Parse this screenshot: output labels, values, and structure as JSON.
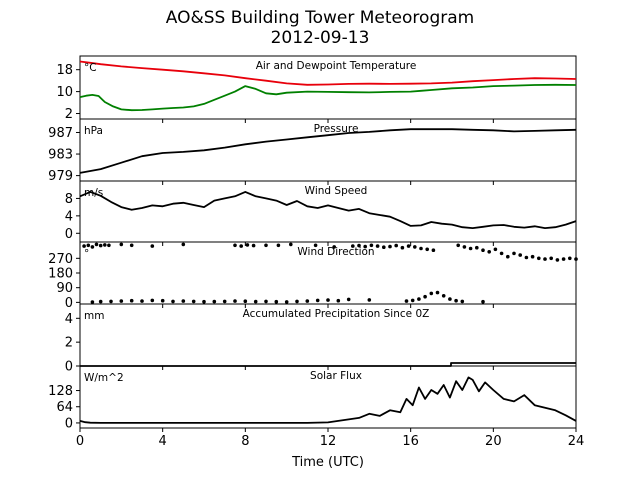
{
  "title_line1": "AO&SS Building Tower Meteorogram",
  "title_line2": "2012-09-13",
  "xlabel": "Time (UTC)",
  "x_ticks": [
    0,
    4,
    8,
    12,
    16,
    20,
    24
  ],
  "chart_data": [
    {
      "type": "line",
      "title": "Air and Dewpoint Temperature",
      "unit_label": "°C",
      "xlim": [
        0,
        24
      ],
      "ylim": [
        0,
        23
      ],
      "yticks": [
        2,
        10,
        18
      ],
      "series": [
        {
          "color": "#e8000b",
          "x": [
            0,
            0.5,
            1,
            2,
            3,
            4,
            5,
            6,
            7,
            8,
            9,
            10,
            11,
            12,
            13,
            14,
            15,
            16,
            17,
            18,
            19,
            20,
            21,
            22,
            23,
            24
          ],
          "y": [
            21,
            20.5,
            20,
            19.2,
            18.6,
            18,
            17.4,
            16.7,
            15.9,
            14.9,
            14,
            13,
            12.5,
            12.6,
            12.8,
            12.9,
            12.8,
            12.9,
            13,
            13.3,
            13.8,
            14.2,
            14.6,
            14.9,
            14.8,
            14.6
          ]
        },
        {
          "color": "#008000",
          "x": [
            0,
            0.3,
            0.6,
            0.9,
            1.2,
            1.6,
            2,
            2.5,
            3,
            3.5,
            4,
            4.5,
            5,
            5.5,
            6,
            6.5,
            7,
            7.5,
            8,
            8.5,
            9,
            9.5,
            10,
            11,
            12,
            13,
            14,
            15,
            16,
            16.5,
            17,
            18,
            19,
            20,
            21,
            22,
            23,
            24
          ],
          "y": [
            8,
            8.5,
            8.8,
            8.4,
            6.2,
            4.6,
            3.5,
            3.2,
            3.3,
            3.5,
            3.8,
            4,
            4.2,
            4.6,
            5.5,
            7,
            8.5,
            10,
            12,
            11,
            9.4,
            9,
            9.6,
            10,
            9.9,
            9.8,
            9.7,
            9.9,
            10,
            10.3,
            10.6,
            11.2,
            11.5,
            12,
            12.2,
            12.4,
            12.5,
            12.4
          ]
        }
      ]
    },
    {
      "type": "line",
      "title": "Pressure",
      "unit_label": "hPa",
      "xlim": [
        0,
        24
      ],
      "ylim": [
        978,
        989.5
      ],
      "yticks": [
        979,
        983,
        987
      ],
      "series": [
        {
          "color": "#000000",
          "x": [
            0,
            1,
            2,
            3,
            4,
            5,
            6,
            7,
            8,
            9,
            10,
            11,
            12,
            13,
            14,
            15,
            16,
            17,
            18,
            19,
            20,
            21,
            22,
            23,
            24
          ],
          "y": [
            979.5,
            980.2,
            981.4,
            982.6,
            983.2,
            983.4,
            983.7,
            984.2,
            984.8,
            985.3,
            985.7,
            986.1,
            986.5,
            986.9,
            987.1,
            987.4,
            987.6,
            987.6,
            987.6,
            987.5,
            987.4,
            987.2,
            987.3,
            987.4,
            987.5
          ]
        }
      ]
    },
    {
      "type": "line",
      "title": "Wind Speed",
      "unit_label": "m/s",
      "xlim": [
        0,
        24
      ],
      "ylim": [
        -2,
        12
      ],
      "yticks": [
        0,
        4,
        8
      ],
      "series": [
        {
          "color": "#000000",
          "x": [
            0,
            0.5,
            1,
            1.5,
            2,
            2.5,
            3,
            3.5,
            4,
            4.5,
            5,
            5.5,
            6,
            6.5,
            7,
            7.5,
            8,
            8.5,
            9,
            9.5,
            10,
            10.5,
            11,
            11.5,
            12,
            12.5,
            13,
            13.5,
            14,
            14.5,
            15,
            15.5,
            16,
            16.5,
            17,
            17.5,
            18,
            18.5,
            19,
            19.5,
            20,
            20.5,
            21,
            21.5,
            22,
            22.5,
            23,
            23.5,
            24
          ],
          "y": [
            8.5,
            9.5,
            8.6,
            7.2,
            6,
            5.4,
            5.8,
            6.4,
            6.2,
            6.8,
            7,
            6.5,
            6,
            7.5,
            8,
            8.5,
            9.5,
            8.5,
            8,
            7.5,
            6.5,
            7.4,
            6.2,
            5.8,
            6.4,
            5.8,
            5.2,
            5.6,
            4.6,
            4.2,
            3.8,
            2.8,
            1.7,
            1.8,
            2.6,
            2.2,
            2,
            1.4,
            1.2,
            1.5,
            1.8,
            1.9,
            1.5,
            1.3,
            1.6,
            1.2,
            1.4,
            2,
            2.8
          ]
        }
      ]
    },
    {
      "type": "scatter",
      "title": "Wind Direction",
      "unit_label": "°",
      "xlim": [
        0,
        24
      ],
      "ylim": [
        -10,
        370
      ],
      "yticks": [
        0,
        90,
        180,
        270
      ],
      "series": [
        {
          "color": "#000000",
          "x": [
            0.2,
            0.4,
            0.6,
            0.8,
            1,
            1.2,
            1.4,
            2,
            2.5,
            3.5,
            5,
            7.5,
            7.8,
            8.1,
            8.4,
            9,
            9.6,
            10.2,
            11.4,
            12.3,
            13.2,
            13.5,
            13.8,
            14.1,
            14.4,
            14.7,
            15,
            15.3,
            15.6,
            15.9,
            16.2,
            16.5,
            16.8,
            17.1,
            18.3,
            18.6,
            18.9,
            19.2,
            19.5,
            19.8,
            20.1,
            20.4,
            20.7,
            21,
            21.3,
            21.6,
            21.9,
            22.2,
            22.5,
            22.8,
            23.1,
            23.4,
            23.7,
            24
          ],
          "y": [
            345,
            350,
            340,
            355,
            348,
            352,
            350,
            355,
            350,
            345,
            355,
            350,
            345,
            352,
            348,
            350,
            350,
            355,
            350,
            340,
            345,
            348,
            342,
            350,
            345,
            338,
            342,
            348,
            335,
            345,
            340,
            330,
            325,
            320,
            350,
            340,
            330,
            335,
            320,
            310,
            325,
            300,
            280,
            300,
            290,
            275,
            280,
            270,
            265,
            270,
            260,
            265,
            270,
            265
          ]
        },
        {
          "color": "#000000",
          "x": [
            0.6,
            1,
            1.5,
            2,
            2.5,
            3,
            3.5,
            4,
            4.5,
            5,
            5.5,
            6,
            6.5,
            7,
            7.5,
            8,
            8.5,
            9,
            9.5,
            10,
            10.5,
            11,
            11.5,
            12,
            12.5,
            13,
            14,
            15.8,
            16.1,
            16.4,
            16.7,
            17,
            17.3,
            17.6,
            17.9,
            18.2,
            18.5,
            19.5
          ],
          "y": [
            2,
            5,
            6,
            8,
            10,
            8,
            12,
            10,
            6,
            8,
            6,
            4,
            5,
            6,
            8,
            7,
            5,
            6,
            4,
            3,
            6,
            8,
            12,
            14,
            10,
            18,
            15,
            8,
            12,
            20,
            35,
            55,
            60,
            40,
            20,
            10,
            6,
            4
          ]
        }
      ]
    },
    {
      "type": "line",
      "title": "Accumulated Precipitation Since 0Z",
      "unit_label": "mm",
      "xlim": [
        0,
        24
      ],
      "ylim": [
        0,
        5.2
      ],
      "yticks": [
        0,
        2,
        4
      ],
      "series": [
        {
          "color": "#000000",
          "x": [
            0,
            17.95,
            17.95,
            24
          ],
          "y": [
            0,
            0,
            0.25,
            0.25
          ]
        }
      ]
    },
    {
      "type": "line",
      "title": "Solar Flux",
      "unit_label": "W/m^2",
      "xlim": [
        0,
        24
      ],
      "ylim": [
        -20,
        225
      ],
      "yticks": [
        0,
        64,
        128
      ],
      "series": [
        {
          "color": "#000000",
          "x": [
            0,
            0.25,
            0.5,
            1,
            2,
            4,
            6,
            8,
            10,
            11,
            12,
            12.5,
            13,
            13.5,
            14,
            14.5,
            15,
            15.5,
            15.8,
            16.1,
            16.4,
            16.7,
            17,
            17.3,
            17.6,
            17.9,
            18.2,
            18.5,
            18.8,
            19,
            19.3,
            19.6,
            20,
            20.5,
            21,
            21.5,
            22,
            22.5,
            23,
            23.5,
            24
          ],
          "y": [
            8,
            3,
            1,
            0,
            0,
            0,
            0,
            0,
            0,
            0,
            2,
            8,
            14,
            20,
            36,
            28,
            50,
            42,
            95,
            70,
            140,
            95,
            130,
            115,
            150,
            100,
            165,
            130,
            180,
            170,
            125,
            160,
            130,
            95,
            85,
            110,
            70,
            60,
            50,
            30,
            8
          ]
        }
      ]
    }
  ]
}
